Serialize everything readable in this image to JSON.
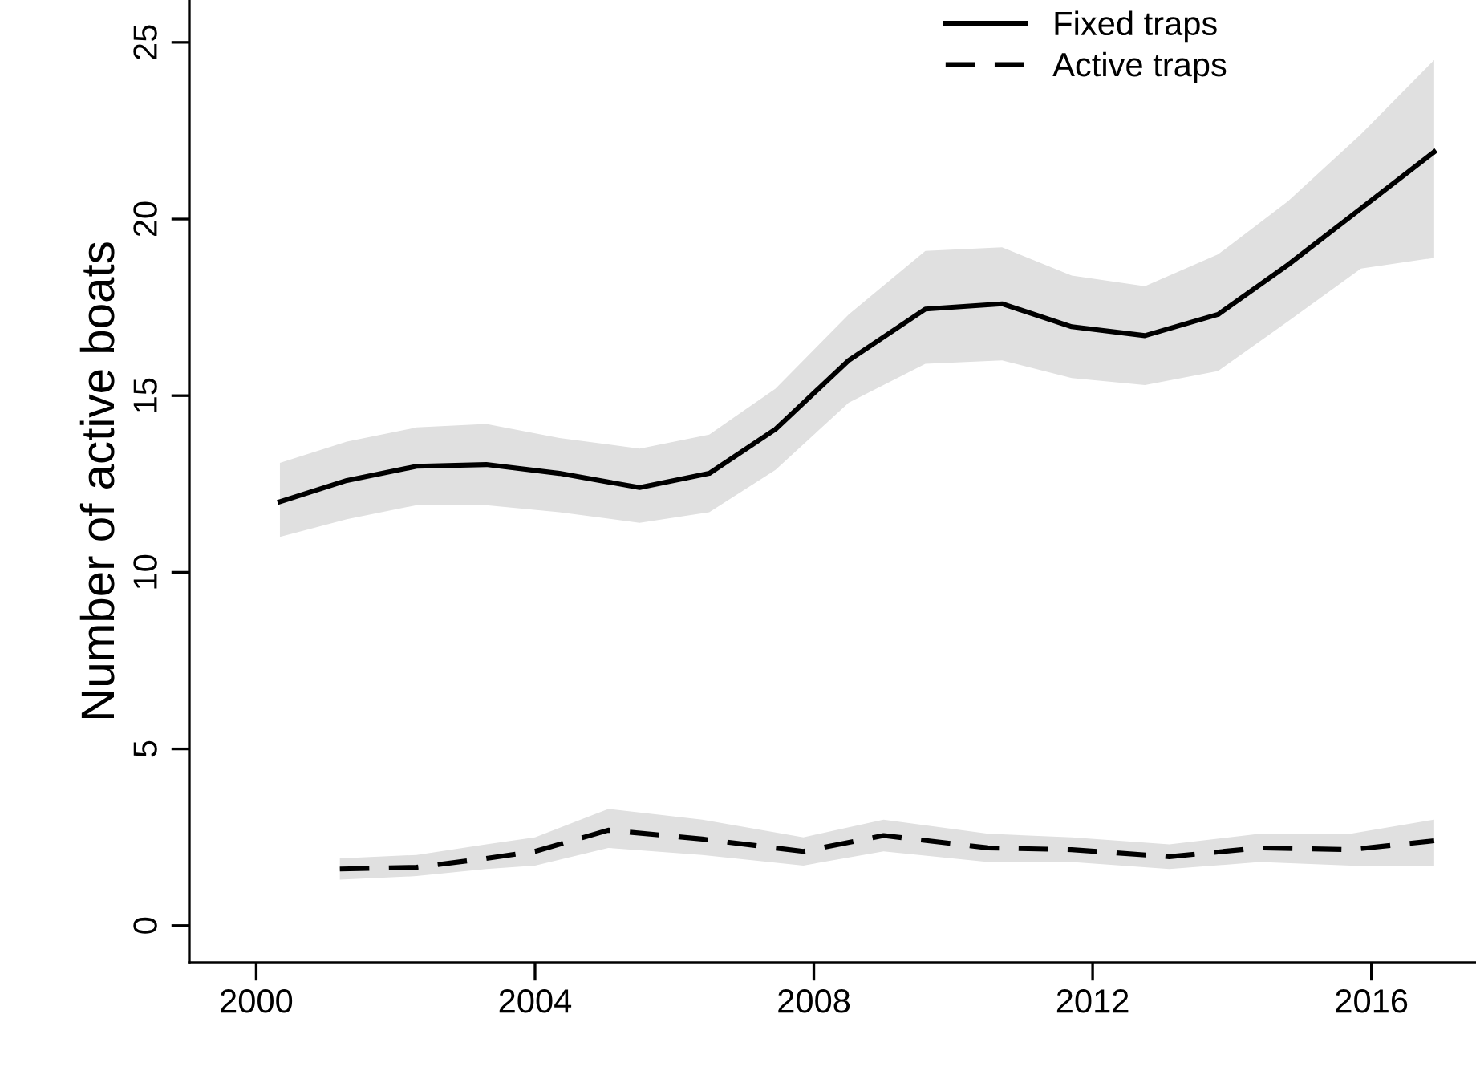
{
  "chart_data": {
    "type": "line",
    "ylabel": "Number of active boats",
    "xlim": [
      1999.04,
      2017.5
    ],
    "ylim": [
      -1.05,
      26.2
    ],
    "xticks": [
      2000,
      2004,
      2008,
      2012,
      2016
    ],
    "yticks": [
      0,
      5,
      10,
      15,
      20,
      25
    ],
    "grid": false,
    "legend": "top right",
    "marker": "none",
    "series": [
      {
        "name": "Fixed traps",
        "color": "#000000",
        "line_style": "solid",
        "x": [
          2000.34,
          2001.3,
          2002.3,
          2003.3,
          2004.35,
          2005.5,
          2006.5,
          2007.45,
          2008.5,
          2009.6,
          2010.7,
          2011.7,
          2012.75,
          2013.8,
          2014.8,
          2015.85,
          2016.9
        ],
        "values": [
          12.0,
          12.6,
          13.0,
          13.05,
          12.8,
          12.4,
          12.8,
          14.05,
          16.0,
          17.45,
          17.6,
          16.95,
          16.7,
          17.3,
          18.7,
          20.3,
          21.9
        ],
        "lower": [
          11.0,
          11.5,
          11.9,
          11.9,
          11.7,
          11.4,
          11.7,
          12.9,
          14.8,
          15.9,
          16.0,
          15.5,
          15.3,
          15.7,
          17.1,
          18.6,
          18.9
        ],
        "upper": [
          13.1,
          13.7,
          14.1,
          14.2,
          13.8,
          13.5,
          13.9,
          15.2,
          17.3,
          19.1,
          19.2,
          18.4,
          18.1,
          19.0,
          20.5,
          22.4,
          24.5
        ]
      },
      {
        "name": "Active traps",
        "color": "#000000",
        "line_style": "dashed",
        "x": [
          2001.2,
          2002.3,
          2003.3,
          2004.0,
          2005.05,
          2006.4,
          2007.85,
          2009.0,
          2010.5,
          2011.7,
          2013.1,
          2014.4,
          2015.7,
          2016.9
        ],
        "values": [
          1.6,
          1.65,
          1.9,
          2.1,
          2.7,
          2.45,
          2.1,
          2.55,
          2.2,
          2.15,
          1.95,
          2.2,
          2.15,
          2.4
        ],
        "lower": [
          1.3,
          1.4,
          1.6,
          1.7,
          2.2,
          2.0,
          1.7,
          2.1,
          1.8,
          1.8,
          1.6,
          1.8,
          1.7,
          1.7
        ],
        "upper": [
          1.9,
          2.0,
          2.3,
          2.5,
          3.3,
          3.0,
          2.5,
          3.0,
          2.6,
          2.5,
          2.3,
          2.6,
          2.6,
          3.0
        ]
      }
    ]
  }
}
